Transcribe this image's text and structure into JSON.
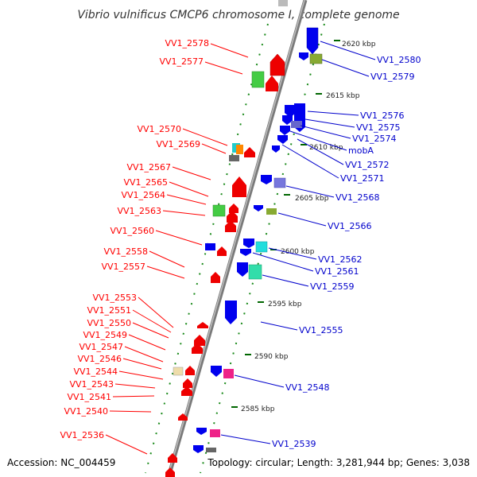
{
  "title": "Vibrio vulnificus CMCP6 chromosome I, complete genome",
  "footer": {
    "accession": "Accession: NC_004459",
    "topology": "Topology: circular; Length: 3,281,944 bp; Genes: 3,038"
  },
  "colors": {
    "backbone": "#8a8a8a",
    "left_labels": "#ff0000",
    "right_labels": "#0000cc",
    "kbp_ticks": "#006600",
    "gene_forward": "#ff0000",
    "gene_reverse": "#0000ff"
  },
  "kbp_labels": [
    "2620 kbp",
    "2615 kbp",
    "2610 kbp",
    "2605 kbp",
    "2600 kbp",
    "2595 kbp",
    "2590 kbp",
    "2585 kbp"
  ],
  "left_labels": [
    "VV1_2578",
    "VV1_2577",
    "VV1_2570",
    "VV1_2569",
    "VV1_2567",
    "VV1_2565",
    "VV1_2564",
    "VV1_2563",
    "VV1_2560",
    "VV1_2558",
    "VV1_2557",
    "VV1_2553",
    "VV1_2551",
    "VV1_2550",
    "VV1_2549",
    "VV1_2547",
    "VV1_2546",
    "VV1_2544",
    "VV1_2543",
    "VV1_2541",
    "VV1_2540",
    "VV1_2536"
  ],
  "right_labels": [
    "VV1_2580",
    "VV1_2579",
    "VV1_2576",
    "VV1_2575",
    "VV1_2574",
    "mobA",
    "VV1_2572",
    "VV1_2571",
    "VV1_2568",
    "VV1_2566",
    "VV1_2562",
    "VV1_2561",
    "VV1_2559",
    "VV1_2555",
    "VV1_2548",
    "VV1_2539"
  ]
}
